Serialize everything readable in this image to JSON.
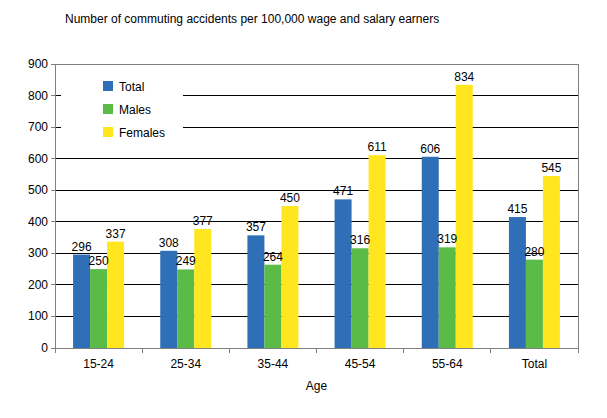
{
  "chart_data": {
    "type": "bar",
    "title": "Number of commuting accidents per 100,000 wage and salary earners",
    "x_label": "Age",
    "categories": [
      "15-24",
      "25-34",
      "35-44",
      "45-54",
      "55-64",
      "Total"
    ],
    "series": [
      {
        "name": "Total",
        "color": "#2e6fb7",
        "values": [
          296,
          308,
          357,
          471,
          606,
          415
        ]
      },
      {
        "name": "Males",
        "color": "#5bbb47",
        "values": [
          250,
          249,
          264,
          316,
          319,
          280
        ]
      },
      {
        "name": "Females",
        "color": "#ffe61e",
        "values": [
          337,
          377,
          450,
          611,
          834,
          545
        ]
      }
    ],
    "ylim": [
      0,
      900
    ],
    "yticks": [
      0,
      100,
      200,
      300,
      400,
      500,
      600,
      700,
      800,
      900
    ],
    "grid": true,
    "legend": "top-left",
    "data_labels": true
  }
}
